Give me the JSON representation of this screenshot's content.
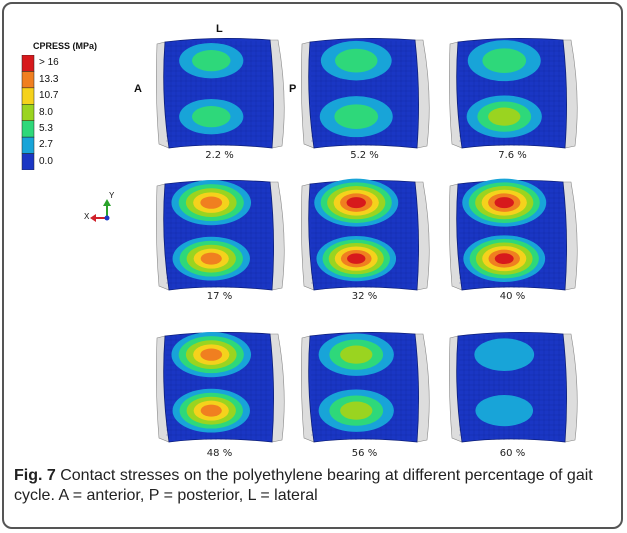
{
  "legend": {
    "title": "CPRESS (MPa)",
    "labels": [
      "> 16",
      "13.3",
      "10.7",
      "8.0",
      "5.3",
      "2.7",
      "0.0"
    ],
    "colors": [
      "#d7191c",
      "#f07f20",
      "#f5d21c",
      "#9ad420",
      "#2ed87a",
      "#18a4d8",
      "#1a36c4"
    ]
  },
  "annotations": {
    "anterior": "A",
    "posterior": "P",
    "lateral": "L"
  },
  "triad": {
    "x_label": "X",
    "y_label": "Y"
  },
  "panels": [
    {
      "label": "2.2 %",
      "top": {
        "level": 0.25,
        "spread": 0.55
      },
      "bottom": {
        "level": 0.3,
        "spread": 0.55
      }
    },
    {
      "label": "5.2 %",
      "top": {
        "level": 0.32,
        "spread": 0.7
      },
      "bottom": {
        "level": 0.4,
        "spread": 0.75
      }
    },
    {
      "label": "7.6 %",
      "top": {
        "level": 0.4,
        "spread": 0.75
      },
      "bottom": {
        "level": 0.45,
        "spread": 0.8
      }
    },
    {
      "label": "17 %",
      "top": {
        "level": 0.85,
        "spread": 0.9
      },
      "bottom": {
        "level": 0.75,
        "spread": 0.85
      }
    },
    {
      "label": "32 %",
      "top": {
        "level": 1.0,
        "spread": 1.0
      },
      "bottom": {
        "level": 0.95,
        "spread": 0.9
      }
    },
    {
      "label": "40 %",
      "top": {
        "level": 1.0,
        "spread": 1.0
      },
      "bottom": {
        "level": 1.0,
        "spread": 0.95
      }
    },
    {
      "label": "48 %",
      "top": {
        "level": 0.8,
        "spread": 0.9
      },
      "bottom": {
        "level": 0.75,
        "spread": 0.85
      }
    },
    {
      "label": "56 %",
      "top": {
        "level": 0.45,
        "spread": 0.8
      },
      "bottom": {
        "level": 0.45,
        "spread": 0.8
      }
    },
    {
      "label": "60 %",
      "top": {
        "level": 0.2,
        "spread": 0.45
      },
      "bottom": {
        "level": 0.15,
        "spread": 0.4
      }
    }
  ],
  "caption": {
    "label": "Fig. 7",
    "text": " Contact stresses on the polyethylene bearing at different percentage of gait cycle. A = anterior, P = posterior, L = lateral"
  }
}
